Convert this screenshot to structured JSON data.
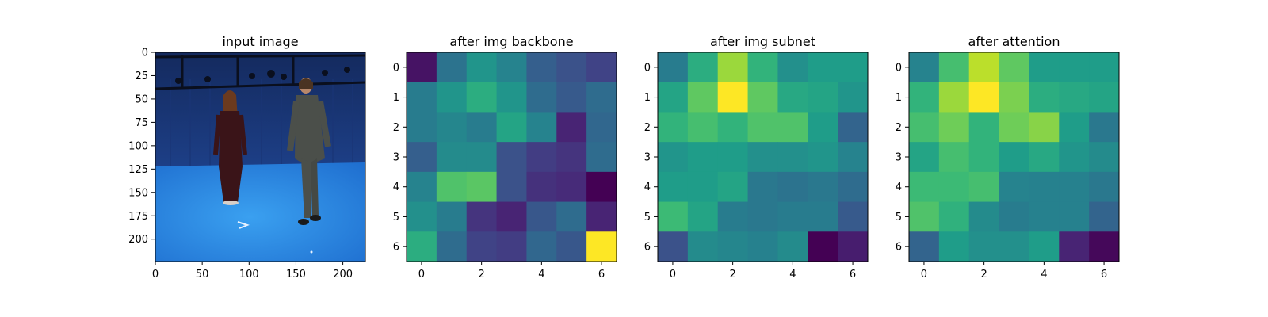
{
  "figure": {
    "panels": [
      {
        "title": "input image"
      },
      {
        "title": "after img backbone"
      },
      {
        "title": "after img subnet"
      },
      {
        "title": "after attention"
      }
    ]
  },
  "chart_data": [
    {
      "type": "image",
      "title": "input image",
      "description_text": "",
      "xlim": [
        0,
        224
      ],
      "ylim": [
        224,
        0
      ],
      "xticks": [
        0,
        50,
        100,
        150,
        200
      ],
      "yticks": [
        0,
        25,
        50,
        75,
        100,
        125,
        150,
        175,
        200
      ],
      "colors": {
        "backdrop": "#1f3f86",
        "floor": "#2f8fe6",
        "figure_left": "#3a1418",
        "figure_right": "#4b4f4a"
      }
    },
    {
      "type": "heatmap",
      "title": "after img backbone",
      "xticks": [
        0,
        2,
        4,
        6
      ],
      "yticks": [
        0,
        1,
        2,
        3,
        4,
        5,
        6
      ],
      "colormap": "viridis",
      "values": [
        [
          0.05,
          0.38,
          0.52,
          0.45,
          0.3,
          0.25,
          0.2
        ],
        [
          0.42,
          0.52,
          0.62,
          0.52,
          0.35,
          0.28,
          0.35
        ],
        [
          0.42,
          0.46,
          0.42,
          0.58,
          0.45,
          0.1,
          0.33
        ],
        [
          0.3,
          0.48,
          0.48,
          0.25,
          0.18,
          0.15,
          0.35
        ],
        [
          0.45,
          0.72,
          0.74,
          0.25,
          0.14,
          0.12,
          0.0
        ],
        [
          0.5,
          0.42,
          0.15,
          0.1,
          0.27,
          0.35,
          0.1
        ],
        [
          0.62,
          0.35,
          0.2,
          0.18,
          0.33,
          0.27,
          1.0
        ]
      ]
    },
    {
      "type": "heatmap",
      "title": "after img subnet",
      "xticks": [
        0,
        2,
        4,
        6
      ],
      "yticks": [
        0,
        1,
        2,
        3,
        4,
        5,
        6
      ],
      "colormap": "viridis",
      "values": [
        [
          0.42,
          0.62,
          0.85,
          0.65,
          0.5,
          0.55,
          0.55
        ],
        [
          0.58,
          0.75,
          1.0,
          0.75,
          0.6,
          0.58,
          0.52
        ],
        [
          0.65,
          0.7,
          0.65,
          0.72,
          0.72,
          0.55,
          0.32
        ],
        [
          0.52,
          0.55,
          0.55,
          0.5,
          0.5,
          0.52,
          0.45
        ],
        [
          0.55,
          0.55,
          0.58,
          0.4,
          0.38,
          0.4,
          0.35
        ],
        [
          0.68,
          0.58,
          0.42,
          0.4,
          0.42,
          0.42,
          0.28
        ],
        [
          0.25,
          0.48,
          0.46,
          0.44,
          0.48,
          0.0,
          0.08
        ]
      ]
    },
    {
      "type": "heatmap",
      "title": "after attention",
      "xticks": [
        0,
        2,
        4,
        6
      ],
      "yticks": [
        0,
        1,
        2,
        3,
        4,
        5,
        6
      ],
      "colormap": "viridis",
      "values": [
        [
          0.45,
          0.7,
          0.9,
          0.75,
          0.55,
          0.55,
          0.55
        ],
        [
          0.65,
          0.85,
          1.0,
          0.8,
          0.62,
          0.6,
          0.58
        ],
        [
          0.7,
          0.78,
          0.65,
          0.78,
          0.82,
          0.55,
          0.4
        ],
        [
          0.58,
          0.7,
          0.65,
          0.55,
          0.6,
          0.52,
          0.48
        ],
        [
          0.68,
          0.68,
          0.7,
          0.45,
          0.44,
          0.44,
          0.4
        ],
        [
          0.72,
          0.64,
          0.48,
          0.42,
          0.44,
          0.44,
          0.32
        ],
        [
          0.32,
          0.55,
          0.5,
          0.5,
          0.55,
          0.1,
          0.02
        ]
      ]
    }
  ]
}
